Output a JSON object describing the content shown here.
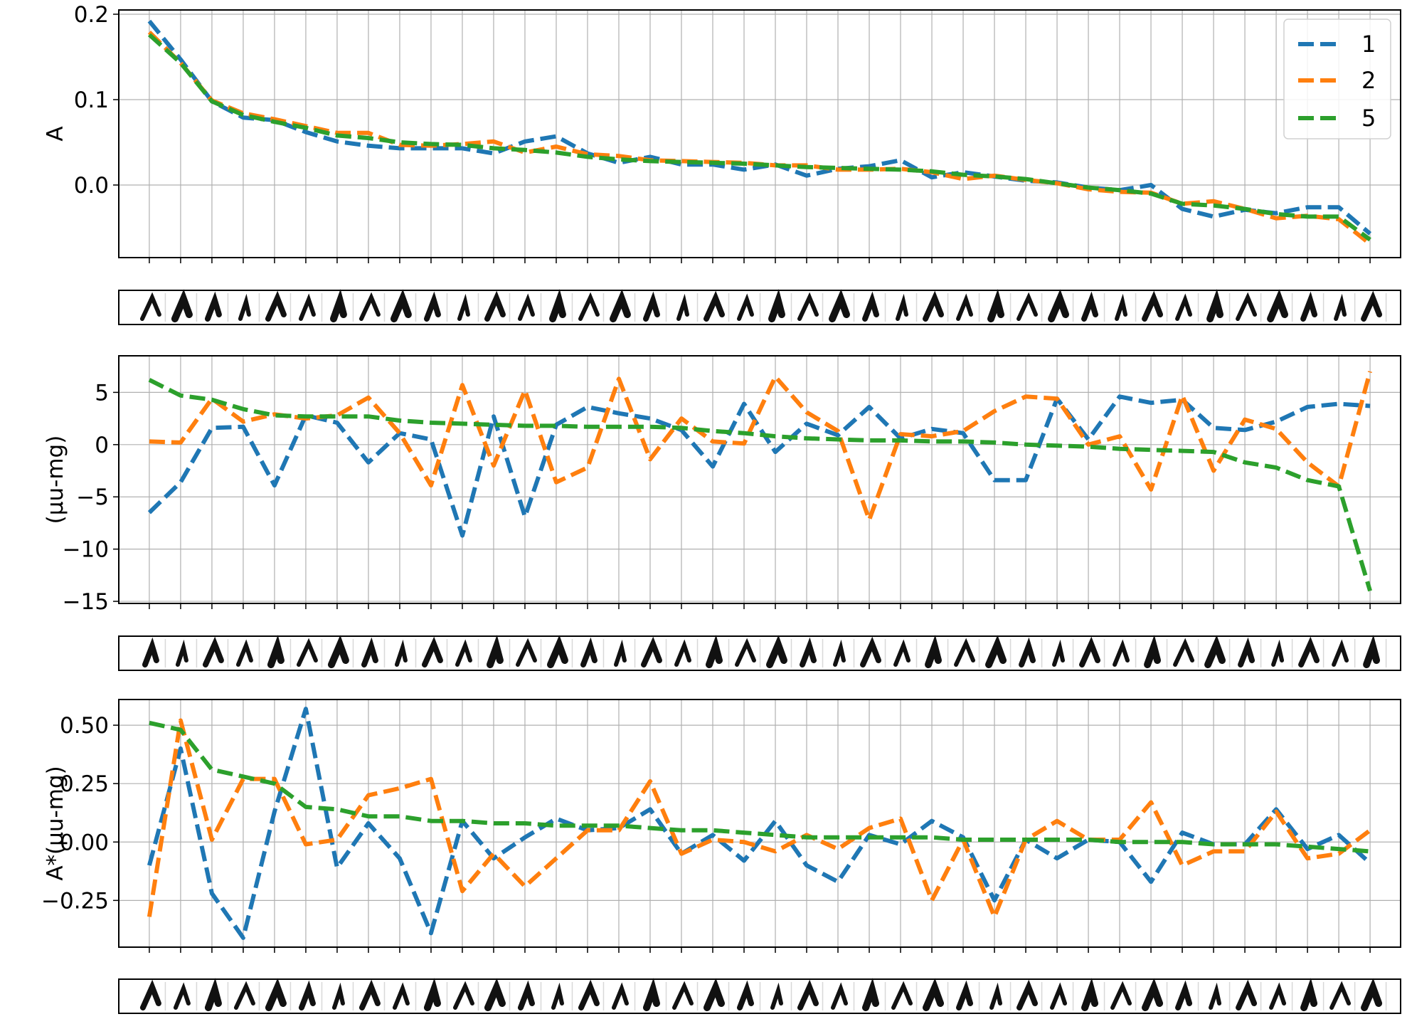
{
  "colors": {
    "1": "#1f77b4",
    "2": "#ff7f0e",
    "5": "#2ca02c",
    "grid": "#b0b0b0",
    "axis": "#000000"
  },
  "legend": {
    "position": "top-right",
    "entries": [
      "1",
      "2",
      "5"
    ]
  },
  "chart_data": [
    {
      "type": "line",
      "ylabel": "A",
      "x": [
        1,
        2,
        3,
        4,
        5,
        6,
        7,
        8,
        9,
        10,
        11,
        12,
        13,
        14,
        15,
        16,
        17,
        18,
        19,
        20,
        21,
        22,
        23,
        24,
        25,
        26,
        27,
        28,
        29,
        30,
        31,
        32,
        33,
        34,
        35,
        36,
        37,
        38,
        39,
        40
      ],
      "ylim": [
        -0.085,
        0.205
      ],
      "yticks": [
        0.0,
        0.1,
        0.2
      ],
      "ytick_labels": [
        "0.0",
        "0.1",
        "0.2"
      ],
      "grid": true,
      "series": [
        {
          "name": "1",
          "values": [
            0.192,
            0.147,
            0.098,
            0.079,
            0.076,
            0.062,
            0.051,
            0.046,
            0.043,
            0.043,
            0.043,
            0.037,
            0.051,
            0.057,
            0.037,
            0.026,
            0.033,
            0.024,
            0.024,
            0.018,
            0.024,
            0.011,
            0.019,
            0.022,
            0.029,
            0.009,
            0.015,
            0.01,
            0.005,
            0.003,
            -0.003,
            -0.006,
            0.0,
            -0.028,
            -0.037,
            -0.029,
            -0.033,
            -0.026,
            -0.026,
            -0.057
          ]
        },
        {
          "name": "2",
          "values": [
            0.179,
            0.143,
            0.099,
            0.084,
            0.077,
            0.069,
            0.061,
            0.061,
            0.047,
            0.046,
            0.048,
            0.051,
            0.038,
            0.045,
            0.036,
            0.034,
            0.029,
            0.028,
            0.027,
            0.026,
            0.023,
            0.023,
            0.018,
            0.018,
            0.019,
            0.015,
            0.007,
            0.011,
            0.006,
            0.002,
            -0.005,
            -0.008,
            -0.009,
            -0.022,
            -0.019,
            -0.028,
            -0.039,
            -0.036,
            -0.04,
            -0.069
          ]
        },
        {
          "name": "5",
          "values": [
            0.176,
            0.143,
            0.098,
            0.082,
            0.074,
            0.067,
            0.058,
            0.055,
            0.05,
            0.048,
            0.047,
            0.043,
            0.041,
            0.038,
            0.033,
            0.03,
            0.028,
            0.027,
            0.026,
            0.025,
            0.023,
            0.021,
            0.02,
            0.019,
            0.018,
            0.016,
            0.012,
            0.01,
            0.007,
            0.002,
            -0.003,
            -0.006,
            -0.01,
            -0.022,
            -0.024,
            -0.028,
            -0.034,
            -0.037,
            -0.037,
            -0.064
          ]
        }
      ]
    },
    {
      "type": "line",
      "ylabel": "(µu-mg)",
      "x": [
        1,
        2,
        3,
        4,
        5,
        6,
        7,
        8,
        9,
        10,
        11,
        12,
        13,
        14,
        15,
        16,
        17,
        18,
        19,
        20,
        21,
        22,
        23,
        24,
        25,
        26,
        27,
        28,
        29,
        30,
        31,
        32,
        33,
        34,
        35,
        36,
        37,
        38,
        39,
        40
      ],
      "ylim": [
        -15.2,
        8.5
      ],
      "yticks": [
        -15,
        -10,
        -5,
        0,
        5
      ],
      "ytick_labels": [
        "−15",
        "−10",
        "−5",
        "0",
        "5"
      ],
      "grid": true,
      "series": [
        {
          "name": "1",
          "values": [
            -6.5,
            -3.6,
            1.6,
            1.7,
            -3.9,
            2.8,
            2.1,
            -1.7,
            1.1,
            0.5,
            -8.7,
            2.7,
            -6.9,
            1.9,
            3.6,
            3.0,
            2.5,
            1.4,
            -2.1,
            3.9,
            -0.7,
            2.0,
            0.9,
            3.6,
            0.6,
            1.5,
            1.1,
            -3.4,
            -3.4,
            4.4,
            0.5,
            4.6,
            4.0,
            4.3,
            1.6,
            1.4,
            2.2,
            3.6,
            3.9,
            3.7
          ]
        },
        {
          "name": "2",
          "values": [
            0.3,
            0.2,
            4.4,
            2.2,
            2.9,
            2.5,
            2.8,
            4.5,
            1.1,
            -3.9,
            5.7,
            -2.0,
            5.2,
            -3.6,
            -2.2,
            6.3,
            -1.4,
            2.5,
            0.3,
            0.1,
            6.5,
            3.1,
            1.3,
            -7.2,
            1.0,
            0.8,
            1.3,
            3.2,
            4.6,
            4.4,
            0.0,
            0.8,
            -4.3,
            4.7,
            -2.5,
            2.4,
            1.5,
            -1.7,
            -4.0,
            7.0
          ]
        },
        {
          "name": "5",
          "values": [
            6.2,
            4.7,
            4.3,
            3.4,
            2.8,
            2.7,
            2.7,
            2.7,
            2.3,
            2.1,
            2.0,
            1.9,
            1.8,
            1.8,
            1.7,
            1.7,
            1.7,
            1.6,
            1.3,
            1.1,
            0.8,
            0.6,
            0.5,
            0.4,
            0.4,
            0.3,
            0.3,
            0.2,
            0.0,
            -0.1,
            -0.2,
            -0.4,
            -0.5,
            -0.6,
            -0.7,
            -1.7,
            -2.2,
            -3.4,
            -4.0,
            -14.0
          ]
        }
      ]
    },
    {
      "type": "line",
      "ylabel": "A*(µu-mg)",
      "x": [
        1,
        2,
        3,
        4,
        5,
        6,
        7,
        8,
        9,
        10,
        11,
        12,
        13,
        14,
        15,
        16,
        17,
        18,
        19,
        20,
        21,
        22,
        23,
        24,
        25,
        26,
        27,
        28,
        29,
        30,
        31,
        32,
        33,
        34,
        35,
        36,
        37,
        38,
        39,
        40
      ],
      "ylim": [
        -0.45,
        0.61
      ],
      "yticks": [
        -0.25,
        0.0,
        0.25,
        0.5
      ],
      "ytick_labels": [
        "−0.25",
        "0.00",
        "0.25",
        "0.50"
      ],
      "grid": true,
      "series": [
        {
          "name": "1",
          "values": [
            -0.1,
            0.4,
            -0.22,
            -0.41,
            0.13,
            0.57,
            -0.11,
            0.08,
            -0.07,
            -0.39,
            0.09,
            -0.07,
            0.02,
            0.1,
            0.05,
            0.06,
            0.14,
            -0.05,
            0.03,
            -0.08,
            0.09,
            -0.1,
            -0.17,
            0.03,
            -0.01,
            0.09,
            0.02,
            -0.25,
            0.01,
            -0.07,
            0.01,
            0.0,
            -0.17,
            0.04,
            -0.01,
            -0.01,
            0.14,
            -0.03,
            0.03,
            -0.09
          ]
        },
        {
          "name": "2",
          "values": [
            -0.32,
            0.52,
            0.01,
            0.27,
            0.27,
            -0.01,
            0.01,
            0.2,
            0.23,
            0.27,
            -0.21,
            -0.05,
            -0.19,
            -0.07,
            0.05,
            0.05,
            0.26,
            -0.05,
            0.01,
            0.0,
            -0.04,
            0.03,
            -0.03,
            0.06,
            0.1,
            -0.25,
            0.01,
            -0.32,
            0.01,
            0.09,
            0.01,
            0.01,
            0.17,
            -0.1,
            -0.04,
            -0.04,
            0.13,
            -0.07,
            -0.05,
            0.05
          ]
        },
        {
          "name": "5",
          "values": [
            0.51,
            0.48,
            0.31,
            0.28,
            0.25,
            0.15,
            0.14,
            0.11,
            0.11,
            0.09,
            0.09,
            0.08,
            0.08,
            0.07,
            0.07,
            0.07,
            0.06,
            0.05,
            0.05,
            0.04,
            0.03,
            0.02,
            0.02,
            0.02,
            0.02,
            0.02,
            0.01,
            0.01,
            0.01,
            0.01,
            0.01,
            0.0,
            0.0,
            0.0,
            -0.01,
            -0.01,
            -0.01,
            -0.02,
            -0.03,
            -0.04
          ]
        }
      ]
    }
  ]
}
